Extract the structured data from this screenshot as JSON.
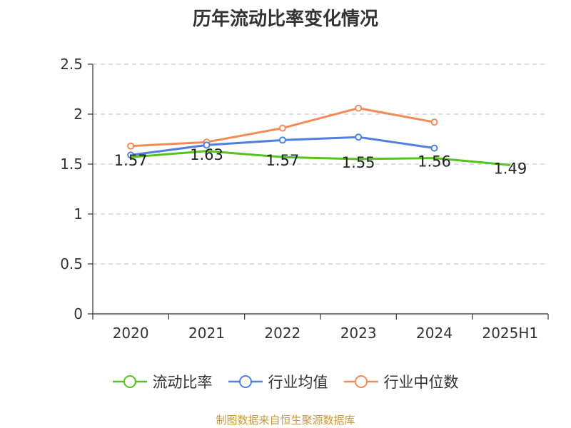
{
  "chart_data": {
    "type": "line",
    "title": "历年流动比率变化情况",
    "categories": [
      "2020",
      "2021",
      "2022",
      "2023",
      "2024",
      "2025H1"
    ],
    "y_ticks": [
      "0",
      "0.5",
      "1",
      "1.5",
      "2",
      "2.5"
    ],
    "ylim": [
      0,
      2.5
    ],
    "grid": true,
    "legend_position": "bottom",
    "series": [
      {
        "name": "流动比率",
        "color": "#52c41a",
        "values": [
          1.57,
          1.63,
          1.57,
          1.55,
          1.56,
          1.49
        ],
        "labels": [
          "1.57",
          "1.63",
          "1.57",
          "1.55",
          "1.56",
          "1.49"
        ]
      },
      {
        "name": "行业均值",
        "color": "#4f7fe0",
        "values": [
          1.59,
          1.69,
          1.74,
          1.77,
          1.66,
          null
        ]
      },
      {
        "name": "行业中位数",
        "color": "#f48b55",
        "values": [
          1.68,
          1.72,
          1.86,
          2.06,
          1.92,
          null
        ]
      }
    ]
  },
  "source": "制图数据来自恒生聚源数据库"
}
